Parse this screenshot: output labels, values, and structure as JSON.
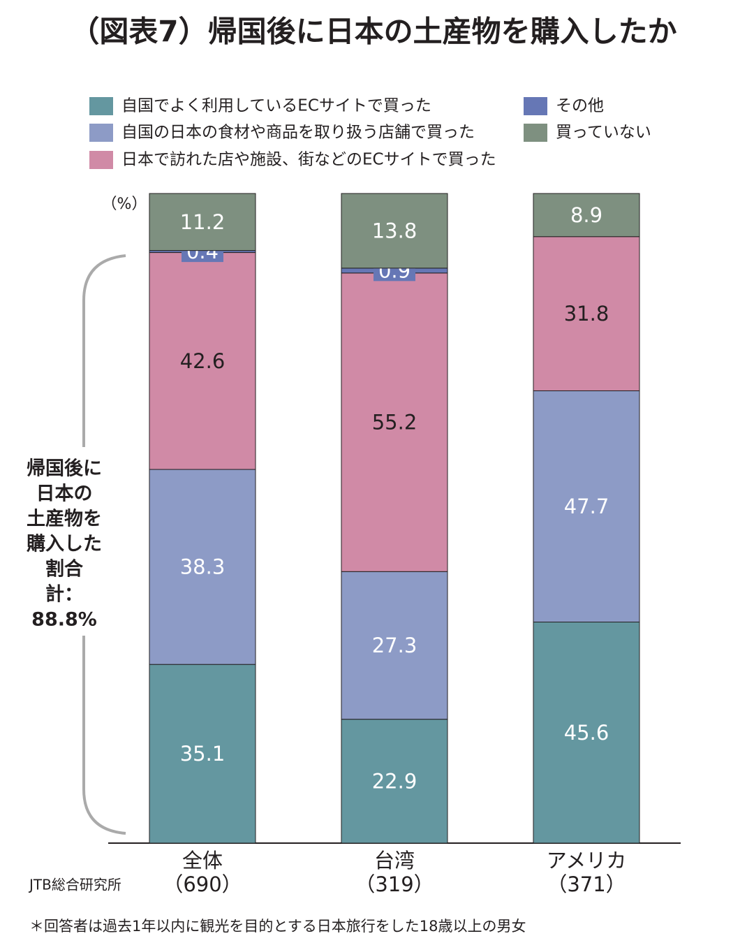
{
  "chart_data": {
    "type": "bar",
    "stacked": true,
    "title": "（図表7）帰国後に日本の土産物を購入したか",
    "unit_label": "（%）",
    "categories": [
      [
        "全体",
        "（690）"
      ],
      [
        "台湾",
        "（319）"
      ],
      [
        "アメリカ",
        "（371）"
      ]
    ],
    "series": [
      {
        "name": "自国でよく利用しているECサイトで買った",
        "color": "#6497a0",
        "label_color": "#ffffff",
        "values": [
          35.1,
          22.9,
          45.6
        ]
      },
      {
        "name": "自国の日本の食材や商品を取り扱う店舗で買った",
        "color": "#8d9bc6",
        "label_color": "#ffffff",
        "values": [
          38.3,
          27.3,
          47.7
        ]
      },
      {
        "name": "日本で訪れた店や施設、街などのECサイトで買った",
        "color": "#d08aa6",
        "label_color": "#231f20",
        "values": [
          42.6,
          55.2,
          31.8
        ]
      },
      {
        "name": "その他",
        "color": "#6677b5",
        "label_color": "#ffffff",
        "values": [
          0.4,
          0.9,
          null
        ]
      },
      {
        "name": "買っていない",
        "color": "#7e9080",
        "label_color": "#ffffff",
        "values": [
          11.2,
          13.8,
          8.9
        ]
      }
    ],
    "annotation": [
      "帰国後に",
      "日本の",
      "土産物を",
      "購入した",
      "割合",
      "計：",
      "88.8%"
    ],
    "source": "JTB総合研究所",
    "footnote": "＊回答者は過去1年以内に観光を目的とする日本旅行をした18歳以上の男女"
  }
}
